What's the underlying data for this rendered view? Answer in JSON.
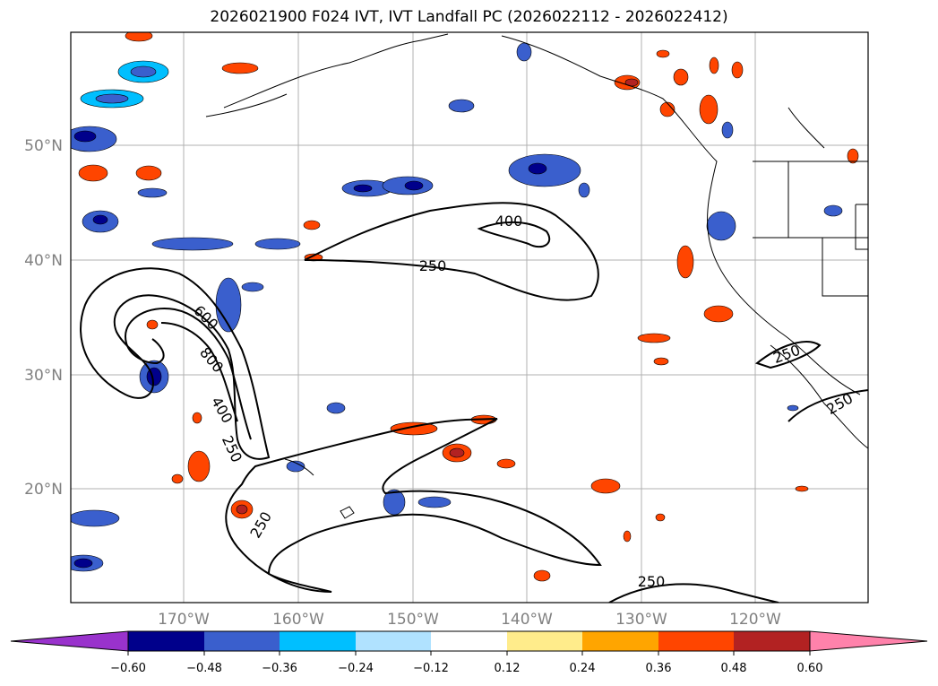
{
  "title": "2026021900 F024 IVT, IVT Landfall PC (2026022112 - 2026022412)",
  "map": {
    "lat_labels": [
      "50°N",
      "40°N",
      "30°N",
      "20°N"
    ],
    "lon_labels": [
      "170°W",
      "160°W",
      "150°W",
      "140°W",
      "130°W",
      "120°W"
    ],
    "contour_labels": [
      "400",
      "250",
      "600",
      "800",
      "400",
      "250",
      "250",
      "250",
      "250",
      "250"
    ]
  },
  "colorbar": {
    "ticks": [
      "−0.60",
      "−0.48",
      "−0.36",
      "−0.24",
      "−0.12",
      "0.12",
      "0.24",
      "0.36",
      "0.48",
      "0.60"
    ],
    "colors": [
      "#9932cc",
      "#00008b",
      "#3a5fcd",
      "#00bfff",
      "#b0e2ff",
      "#ffffff",
      "#ffec8b",
      "#ffa500",
      "#ff4500",
      "#b22222",
      "#ff82ab"
    ]
  }
}
